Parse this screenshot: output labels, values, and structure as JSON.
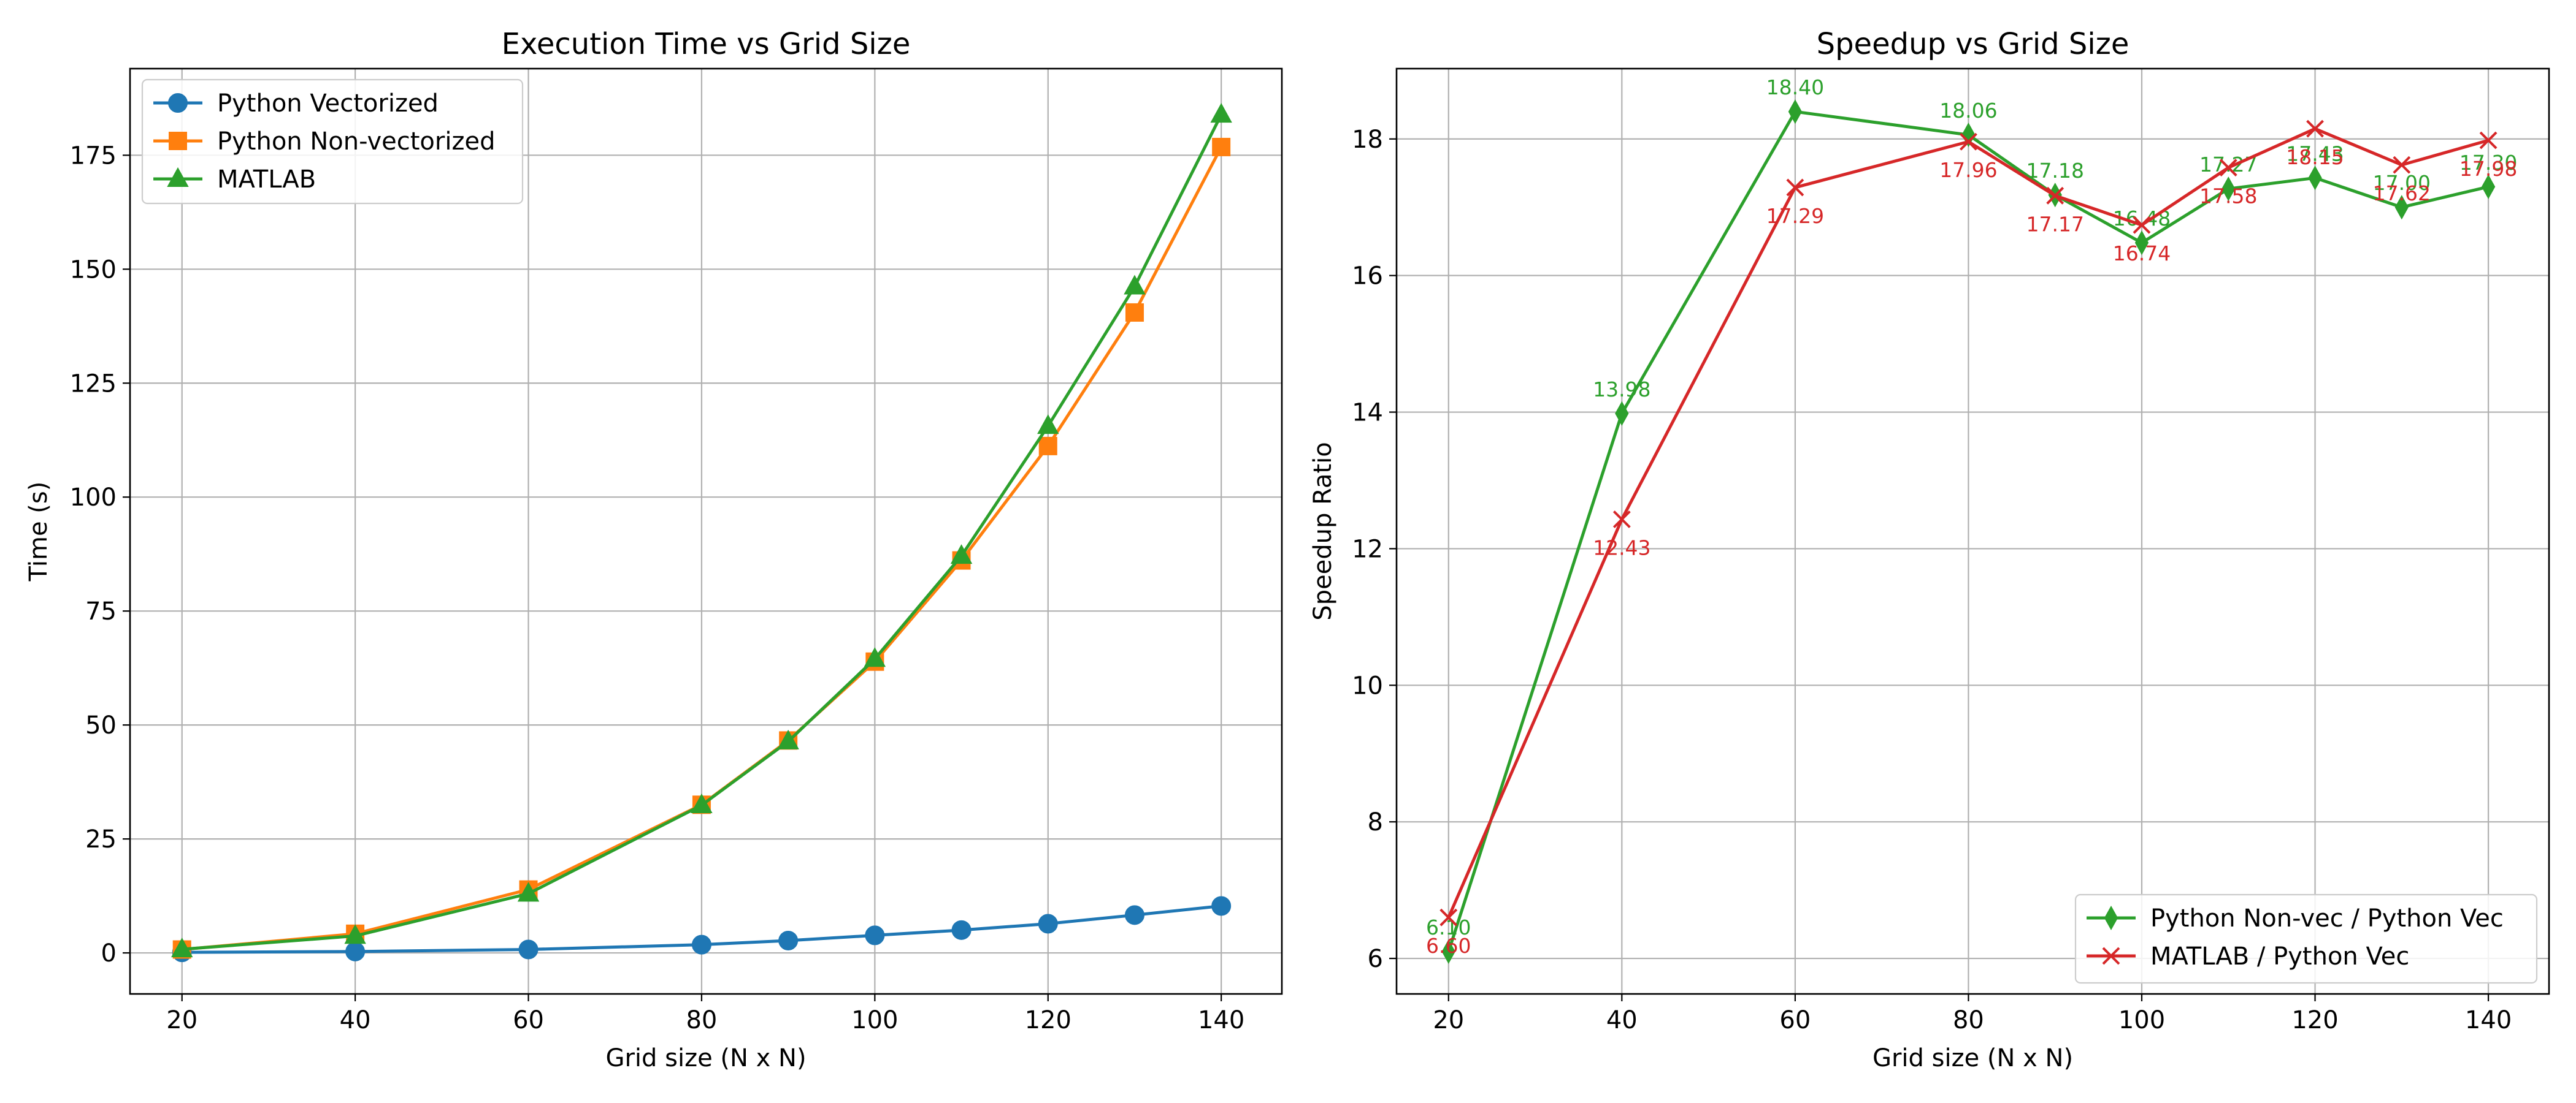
{
  "colors": {
    "blue": "#1f77b4",
    "orange": "#ff7f0e",
    "green": "#2ca02c",
    "red": "#d62728",
    "grid": "#b0b0b0"
  },
  "chart_data": [
    {
      "type": "line",
      "title": "Execution Time vs Grid Size",
      "xlabel": "Grid size (N x N)",
      "ylabel": "Time (s)",
      "xlim": [
        14,
        147
      ],
      "ylim": [
        -9,
        194
      ],
      "xticks": [
        20,
        40,
        60,
        80,
        100,
        120,
        140
      ],
      "yticks": [
        0,
        25,
        50,
        75,
        100,
        125,
        150,
        175
      ],
      "grid": true,
      "legend_position": "upper-left",
      "x": [
        20,
        40,
        60,
        80,
        90,
        100,
        110,
        120,
        130,
        140
      ],
      "series": [
        {
          "name": "Python Vectorized",
          "marker": "circle",
          "color": "#1f77b4",
          "values": [
            0.12,
            0.3,
            0.75,
            1.8,
            2.7,
            3.85,
            5.0,
            6.4,
            8.3,
            10.3
          ]
        },
        {
          "name": "Python Non-vectorized",
          "marker": "square",
          "color": "#ff7f0e",
          "values": [
            0.74,
            4.2,
            13.9,
            32.5,
            46.6,
            63.9,
            86.1,
            111.2,
            140.5,
            176.8
          ]
        },
        {
          "name": "MATLAB",
          "marker": "triangle",
          "color": "#2ca02c",
          "values": [
            0.79,
            3.73,
            13.0,
            32.4,
            46.4,
            64.5,
            87.1,
            115.6,
            146.2,
            183.9
          ]
        }
      ]
    },
    {
      "type": "line",
      "title": "Speedup vs Grid Size",
      "xlabel": "Grid size (N x N)",
      "ylabel": "Speedup Ratio",
      "xlim": [
        14,
        147
      ],
      "ylim": [
        5.48,
        19.03
      ],
      "xticks": [
        20,
        40,
        60,
        80,
        100,
        120,
        140
      ],
      "yticks": [
        6,
        8,
        10,
        12,
        14,
        16,
        18
      ],
      "grid": true,
      "legend_position": "lower-right",
      "x": [
        20,
        40,
        60,
        80,
        90,
        100,
        110,
        120,
        130,
        140
      ],
      "series": [
        {
          "name": "Python Non-vec / Python Vec",
          "marker": "thin_diamond",
          "color": "#2ca02c",
          "values": [
            6.1,
            13.98,
            18.4,
            18.06,
            17.18,
            16.48,
            17.27,
            17.43,
            17.0,
            17.3
          ],
          "labels": [
            "6.10",
            "13.98",
            "18.40",
            "18.06",
            "17.18",
            "16.48",
            "17.27",
            "17.43",
            "17.00",
            "17.30"
          ],
          "label_placement": "above"
        },
        {
          "name": "MATLAB / Python Vec",
          "marker": "x",
          "color": "#d62728",
          "values": [
            6.6,
            12.43,
            17.29,
            17.96,
            17.17,
            16.74,
            17.58,
            18.15,
            17.62,
            17.98
          ],
          "labels": [
            "6.60",
            "12.43",
            "17.29",
            "17.96",
            "17.17",
            "16.74",
            "17.58",
            "18.15",
            "17.62",
            "17.98"
          ],
          "label_placement": "below"
        }
      ]
    }
  ]
}
